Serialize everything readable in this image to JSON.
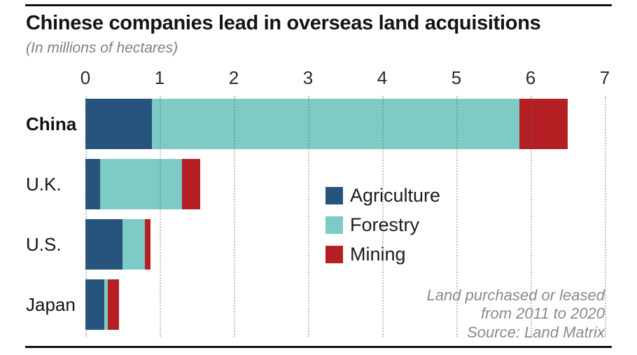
{
  "header": {
    "title": "Chinese companies lead in overseas land acquisitions",
    "subtitle": "(In millions of hectares)"
  },
  "footnote": {
    "line1": "Land purchased or leased",
    "line2": "from 2011 to 2020",
    "line3": "Source: Land Matrix"
  },
  "colors": {
    "agriculture": "#26547c",
    "forestry": "#7dcbc4",
    "mining": "#b41f24",
    "gridline": "#bbbbbb",
    "rule": "#111111"
  },
  "chart_data": {
    "type": "bar",
    "orientation": "horizontal",
    "stacked": true,
    "title": "Chinese companies lead in overseas land acquisitions",
    "subtitle": "(In millions of hectares)",
    "xlabel": "",
    "ylabel": "",
    "xlim": [
      0,
      7
    ],
    "x_ticks": [
      0,
      1,
      2,
      3,
      4,
      5,
      6,
      7
    ],
    "grid": "dotted-vertical",
    "legend_position": "inside-middle-right",
    "categories": [
      "China",
      "U.K.",
      "U.S.",
      "Japan"
    ],
    "series": [
      {
        "name": "Agriculture",
        "color": "#26547c",
        "values": [
          0.9,
          0.2,
          0.5,
          0.25
        ]
      },
      {
        "name": "Forestry",
        "color": "#7dcbc4",
        "values": [
          4.95,
          1.1,
          0.3,
          0.05
        ]
      },
      {
        "name": "Mining",
        "color": "#b41f24",
        "values": [
          0.65,
          0.25,
          0.08,
          0.15
        ]
      }
    ],
    "totals": [
      6.5,
      1.55,
      0.88,
      0.45
    ],
    "annotation": "Land purchased or leased from 2011 to 2020",
    "source": "Source: Land Matrix"
  }
}
